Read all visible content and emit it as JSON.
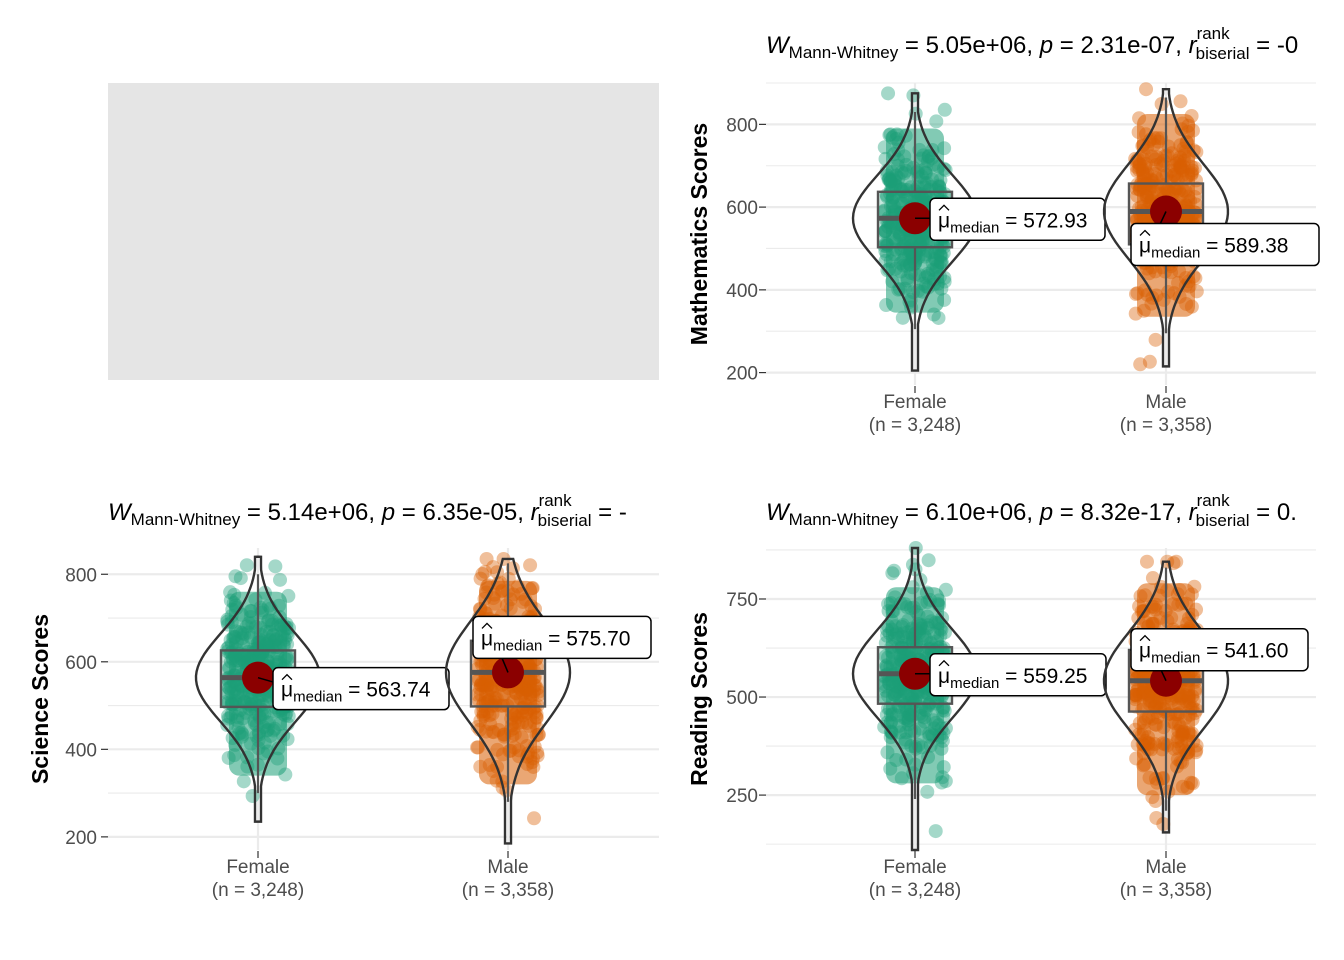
{
  "colors": {
    "female": "#1b9e77",
    "male": "#d95f02",
    "median_point": "#8b0000",
    "placeholder": "#e5e5e5",
    "grid": "#ebebeb"
  },
  "chart_data": [
    {
      "type": "violin",
      "id": "math",
      "title": {
        "stat": "Mann-Whitney",
        "W": "5.05e+06",
        "p": "2.31e-07",
        "r_prefix": "-0",
        "r_sup": "rank",
        "r_sub": "biserial"
      },
      "ylabel": "Mathematics Scores",
      "ylim": [
        170,
        900
      ],
      "yticks": [
        200,
        400,
        600,
        800
      ],
      "groups": [
        {
          "name": "Female",
          "n_label": "(n = 3,248)",
          "median": 572.93,
          "median_label": "572.93",
          "q1": 503,
          "q3": 637,
          "whisker_low": 305,
          "whisker_high": 830,
          "min": 205,
          "max": 875
        },
        {
          "name": "Male",
          "n_label": "(n = 3,358)",
          "median": 589.38,
          "median_label": "589.38",
          "q1": 510,
          "q3": 657,
          "whisker_low": 295,
          "whisker_high": 865,
          "min": 215,
          "max": 885
        }
      ]
    },
    {
      "type": "violin",
      "id": "science",
      "title": {
        "stat": "Mann-Whitney",
        "W": "5.14e+06",
        "p": "6.35e-05",
        "r_prefix": "-",
        "r_sup": "rank",
        "r_sub": "biserial"
      },
      "ylabel": "Science Scores",
      "ylim": [
        170,
        860
      ],
      "yticks": [
        200,
        400,
        600,
        800
      ],
      "groups": [
        {
          "name": "Female",
          "n_label": "(n = 3,248)",
          "median": 563.74,
          "median_label": "563.74",
          "q1": 497,
          "q3": 626,
          "whisker_low": 300,
          "whisker_high": 800,
          "min": 235,
          "max": 840
        },
        {
          "name": "Male",
          "n_label": "(n = 3,358)",
          "median": 575.7,
          "median_label": "575.70",
          "q1": 498,
          "q3": 648,
          "whisker_low": 280,
          "whisker_high": 825,
          "min": 185,
          "max": 835
        }
      ]
    },
    {
      "type": "violin",
      "id": "reading",
      "title": {
        "stat": "Mann-Whitney",
        "W": "6.10e+06",
        "p": "8.32e-17",
        "r_prefix": "0.",
        "r_sup": "rank",
        "r_sub": "biserial"
      },
      "ylabel": "Reading Scores",
      "ylim": [
        110,
        880
      ],
      "yticks": [
        250,
        500,
        750
      ],
      "groups": [
        {
          "name": "Female",
          "n_label": "(n = 3,248)",
          "median": 559.25,
          "median_label": "559.25",
          "q1": 483,
          "q3": 627,
          "whisker_low": 240,
          "whisker_high": 820,
          "min": 110,
          "max": 880
        },
        {
          "name": "Male",
          "n_label": "(n = 3,358)",
          "median": 541.6,
          "median_label": "541.60",
          "q1": 463,
          "q3": 620,
          "whisker_low": 210,
          "whisker_high": 830,
          "min": 155,
          "max": 845
        }
      ]
    }
  ],
  "median_symbol": "μ",
  "median_sub": "median"
}
